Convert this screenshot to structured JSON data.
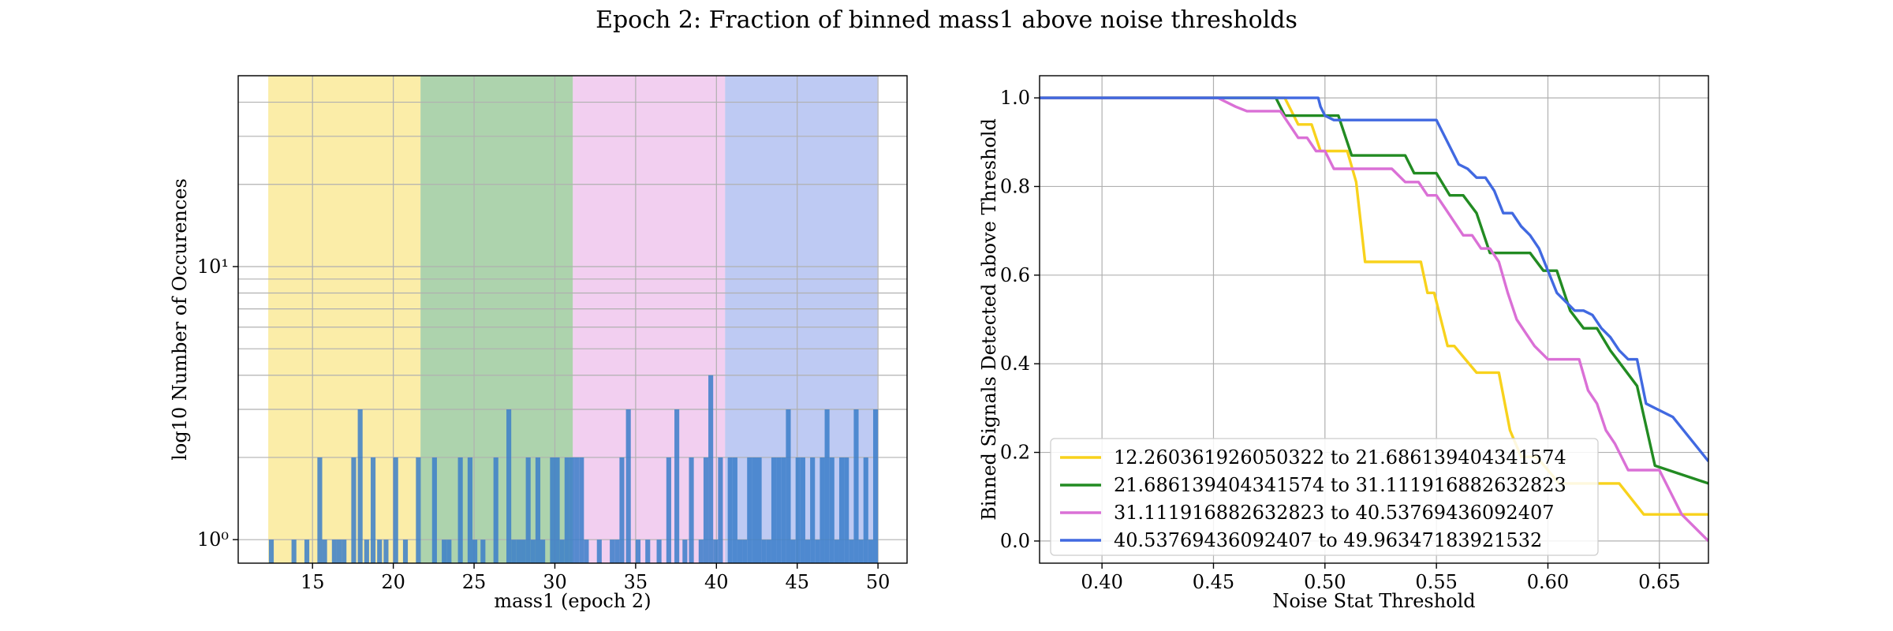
{
  "suptitle": "Epoch 2: Fraction of binned mass1 above noise thresholds",
  "chart_data": [
    {
      "type": "bar",
      "title": "",
      "xlabel": "mass1 (epoch 2)",
      "ylabel": "log10 Number of Occurences",
      "yscale": "log",
      "xlim": [
        10.4,
        51.8
      ],
      "ylim": [
        0.82,
        50
      ],
      "xticks": [
        15,
        20,
        25,
        30,
        35,
        40,
        45,
        50
      ],
      "ytick_labels": [
        "10⁰",
        "10¹"
      ],
      "grid": true,
      "bin_width": 0.3,
      "regions": [
        {
          "from": 12.260361926050322,
          "to": 21.686139404341574,
          "color": "#f8df60"
        },
        {
          "from": 21.686139404341574,
          "to": 31.111916882632823,
          "color": "#6aaf6a"
        },
        {
          "from": 31.111916882632823,
          "to": 40.53769436092407,
          "color": "#e7a7e4"
        },
        {
          "from": 40.53769436092407,
          "to": 49.96347183921532,
          "color": "#889ee9"
        }
      ],
      "bar_color": "#3b7ec9",
      "bins": {
        "x": [
          12.3,
          13.7,
          14.5,
          15.3,
          15.6,
          16.2,
          16.5,
          16.8,
          17.4,
          17.8,
          18.2,
          18.6,
          19.0,
          19.4,
          20.0,
          20.6,
          21.4,
          22.4,
          23.0,
          23.3,
          24.0,
          24.6,
          24.9,
          25.4,
          26.2,
          27.0,
          27.3,
          27.6,
          27.9,
          28.2,
          28.5,
          28.8,
          29.1,
          29.7,
          30.0,
          30.3,
          30.6,
          30.9,
          31.2,
          31.5,
          31.8,
          32.6,
          33.4,
          33.7,
          34.0,
          34.4,
          35.0,
          35.6,
          36.3,
          36.9,
          37.4,
          37.9,
          38.3,
          38.9,
          39.2,
          39.5,
          39.8,
          40.1,
          40.7,
          41.0,
          41.3,
          41.6,
          41.9,
          42.2,
          42.5,
          42.8,
          43.1,
          43.4,
          43.7,
          44.0,
          44.3,
          44.6,
          44.9,
          45.2,
          45.5,
          45.8,
          46.1,
          46.4,
          46.7,
          47.0,
          47.3,
          47.6,
          47.9,
          48.2,
          48.5,
          48.8,
          49.1,
          49.4,
          49.7
        ],
        "counts": [
          1,
          1,
          1,
          2,
          1,
          1,
          1,
          1,
          2,
          3,
          1,
          2,
          1,
          1,
          2,
          1,
          2,
          2,
          1,
          1,
          2,
          2,
          1,
          1,
          2,
          3,
          1,
          1,
          1,
          2,
          1,
          2,
          1,
          2,
          2,
          1,
          2,
          2,
          2,
          2,
          1,
          1,
          1,
          1,
          2,
          3,
          1,
          1,
          1,
          2,
          3,
          1,
          2,
          1,
          2,
          4,
          1,
          2,
          2,
          2,
          1,
          1,
          2,
          2,
          2,
          1,
          1,
          2,
          2,
          2,
          3,
          1,
          2,
          2,
          1,
          2,
          1,
          2,
          3,
          2,
          1,
          2,
          2,
          1,
          3,
          1,
          2,
          1,
          3
        ]
      }
    },
    {
      "type": "line",
      "title": "",
      "xlabel": "Noise Stat Threshold",
      "ylabel": "Binned Signals Detected above Threshold",
      "xlim": [
        0.372,
        0.672
      ],
      "ylim": [
        -0.05,
        1.05
      ],
      "xticks": [
        0.4,
        0.45,
        0.5,
        0.55,
        0.6,
        0.65
      ],
      "xtick_labels": [
        "0.40",
        "0.45",
        "0.50",
        "0.55",
        "0.60",
        "0.65"
      ],
      "yticks": [
        0.0,
        0.2,
        0.4,
        0.6,
        0.8,
        1.0
      ],
      "ytick_labels": [
        "0.0",
        "0.2",
        "0.4",
        "0.6",
        "0.8",
        "1.0"
      ],
      "grid": true,
      "legend_position": "lower-left",
      "series": [
        {
          "name": "12.260361926050322 to 21.686139404341574",
          "color": "#f8d21c",
          "x": [
            0.372,
            0.482,
            0.488,
            0.494,
            0.498,
            0.502,
            0.51,
            0.514,
            0.518,
            0.522,
            0.528,
            0.535,
            0.543,
            0.546,
            0.549,
            0.552,
            0.555,
            0.558,
            0.563,
            0.568,
            0.573,
            0.578,
            0.583,
            0.588,
            0.595,
            0.605,
            0.612,
            0.632,
            0.643,
            0.672
          ],
          "y": [
            1.0,
            1.0,
            0.94,
            0.94,
            0.88,
            0.88,
            0.88,
            0.81,
            0.63,
            0.63,
            0.63,
            0.63,
            0.63,
            0.56,
            0.56,
            0.5,
            0.44,
            0.44,
            0.41,
            0.38,
            0.38,
            0.38,
            0.25,
            0.19,
            0.19,
            0.13,
            0.13,
            0.13,
            0.06,
            0.06
          ]
        },
        {
          "name": "21.686139404341574 to 31.111916882632823",
          "color": "#228b22",
          "x": [
            0.372,
            0.478,
            0.482,
            0.488,
            0.494,
            0.5,
            0.506,
            0.512,
            0.518,
            0.524,
            0.53,
            0.536,
            0.54,
            0.545,
            0.55,
            0.556,
            0.562,
            0.568,
            0.574,
            0.58,
            0.586,
            0.592,
            0.598,
            0.604,
            0.61,
            0.616,
            0.622,
            0.628,
            0.634,
            0.64,
            0.648,
            0.672
          ],
          "y": [
            1.0,
            1.0,
            0.96,
            0.96,
            0.96,
            0.96,
            0.96,
            0.87,
            0.87,
            0.87,
            0.87,
            0.87,
            0.83,
            0.83,
            0.83,
            0.78,
            0.78,
            0.74,
            0.65,
            0.65,
            0.65,
            0.65,
            0.61,
            0.61,
            0.52,
            0.48,
            0.48,
            0.43,
            0.39,
            0.35,
            0.17,
            0.13
          ]
        },
        {
          "name": "31.111916882632823 to 40.53769436092407",
          "color": "#da70d6",
          "x": [
            0.372,
            0.452,
            0.46,
            0.465,
            0.47,
            0.475,
            0.48,
            0.484,
            0.488,
            0.492,
            0.496,
            0.5,
            0.504,
            0.508,
            0.512,
            0.516,
            0.52,
            0.524,
            0.53,
            0.536,
            0.542,
            0.546,
            0.55,
            0.554,
            0.558,
            0.562,
            0.566,
            0.57,
            0.574,
            0.578,
            0.582,
            0.586,
            0.59,
            0.594,
            0.6,
            0.606,
            0.61,
            0.614,
            0.618,
            0.622,
            0.626,
            0.63,
            0.636,
            0.64,
            0.65,
            0.66,
            0.672
          ],
          "y": [
            1.0,
            1.0,
            0.98,
            0.97,
            0.97,
            0.97,
            0.97,
            0.94,
            0.91,
            0.91,
            0.88,
            0.88,
            0.84,
            0.84,
            0.84,
            0.84,
            0.84,
            0.84,
            0.84,
            0.81,
            0.81,
            0.78,
            0.78,
            0.75,
            0.72,
            0.69,
            0.69,
            0.66,
            0.66,
            0.63,
            0.56,
            0.5,
            0.47,
            0.44,
            0.41,
            0.41,
            0.41,
            0.41,
            0.34,
            0.31,
            0.25,
            0.22,
            0.16,
            0.16,
            0.16,
            0.06,
            0.0
          ]
        },
        {
          "name": "40.53769436092407 to 49.96347183921532",
          "color": "#4169e1",
          "x": [
            0.372,
            0.497,
            0.498,
            0.5,
            0.504,
            0.508,
            0.512,
            0.53,
            0.55,
            0.553,
            0.556,
            0.56,
            0.564,
            0.568,
            0.572,
            0.576,
            0.58,
            0.584,
            0.588,
            0.592,
            0.596,
            0.6,
            0.604,
            0.608,
            0.612,
            0.616,
            0.62,
            0.624,
            0.628,
            0.632,
            0.636,
            0.64,
            0.644,
            0.648,
            0.656,
            0.672
          ],
          "y": [
            1.0,
            1.0,
            0.98,
            0.96,
            0.95,
            0.95,
            0.95,
            0.95,
            0.95,
            0.92,
            0.89,
            0.85,
            0.84,
            0.82,
            0.82,
            0.79,
            0.74,
            0.74,
            0.71,
            0.69,
            0.66,
            0.61,
            0.56,
            0.54,
            0.52,
            0.52,
            0.51,
            0.48,
            0.46,
            0.43,
            0.41,
            0.41,
            0.31,
            0.3,
            0.28,
            0.18
          ]
        }
      ]
    }
  ]
}
